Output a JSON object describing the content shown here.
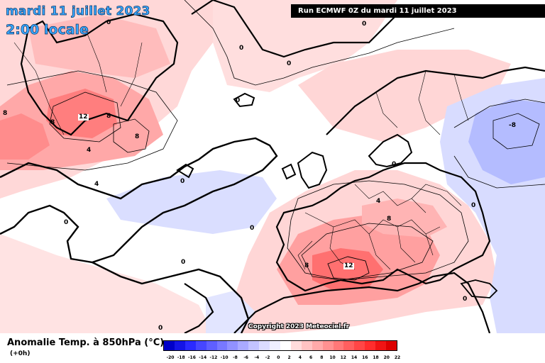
{
  "header": {
    "date": "mardi 11 juillet 2023",
    "time": "2:00 locale",
    "run": "Run ECMWF 0Z du mardi 11 juillet 2023"
  },
  "footer": {
    "copyright": "Copyright 2023 Meteociel.fr",
    "legend_title": "Anomalie Temp. à 850hPa (°C)",
    "legend_subtitle": "(+0h)"
  },
  "legend": {
    "ticks": [
      "-20",
      "-18",
      "-16",
      "-14",
      "-12",
      "-10",
      "-8",
      "-6",
      "-4",
      "-2",
      "0",
      "2",
      "4",
      "6",
      "8",
      "10",
      "12",
      "14",
      "16",
      "18",
      "20",
      "22"
    ],
    "colors": [
      "#0000c8",
      "#1414e6",
      "#2a2aff",
      "#4646ff",
      "#5f5fff",
      "#7878ff",
      "#9191ff",
      "#aaaaff",
      "#c3c3ff",
      "#dcdcff",
      "#f0f0ff",
      "#ffffff",
      "#ffdcdc",
      "#ffc3c3",
      "#ffaaaa",
      "#ff9191",
      "#ff7878",
      "#ff5f5f",
      "#ff4646",
      "#ff2d2d",
      "#f01414",
      "#dc0000"
    ]
  },
  "map": {
    "colors": {
      "light_red": "#ffd6d6",
      "medium_red": "#ffa8a8",
      "red": "#ff7a7a",
      "light_blue": "#d8dcff",
      "medium_blue": "#b4bcff",
      "ocean": "#ffffff",
      "coast": "#000000"
    },
    "isotherm_labels": [
      "0",
      "0",
      "0",
      "0",
      "0",
      "0",
      "0",
      "0",
      "0",
      "0",
      "0",
      "0",
      "0",
      "4",
      "4",
      "4",
      "8",
      "8",
      "8",
      "8",
      "8",
      "8",
      "12",
      "12",
      "-8"
    ]
  }
}
